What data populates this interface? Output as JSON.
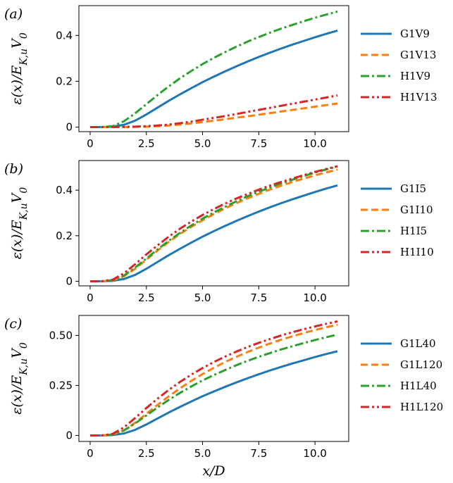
{
  "chart_data": [
    {
      "type": "line",
      "panel_label": "(a)",
      "ylabel": "ε(x)/E_{K,u}V_0",
      "xlabel": "",
      "xlim": [
        -0.5,
        11.5
      ],
      "ylim": [
        -0.02,
        0.53
      ],
      "xticks": [
        0,
        2.5,
        5,
        7.5,
        10
      ],
      "xtick_labels": [
        "0",
        "2.5",
        "5.0",
        "7.5",
        "10.0"
      ],
      "yticks": [
        0,
        0.2,
        0.4
      ],
      "ytick_labels": [
        "0",
        "0.2",
        "0.4"
      ],
      "legend_position": "right",
      "x": [
        0,
        0.5,
        1,
        1.5,
        2,
        2.5,
        3,
        3.5,
        4,
        4.5,
        5,
        5.5,
        6,
        6.5,
        7,
        7.5,
        8,
        8.5,
        9,
        9.5,
        10,
        10.5,
        11
      ],
      "series": [
        {
          "name": "G1V9",
          "color": "#1f77b4",
          "dash": "solid",
          "values": [
            0,
            0,
            0.002,
            0.01,
            0.028,
            0.055,
            0.085,
            0.115,
            0.143,
            0.17,
            0.196,
            0.22,
            0.243,
            0.265,
            0.286,
            0.306,
            0.325,
            0.343,
            0.36,
            0.376,
            0.392,
            0.407,
            0.421
          ]
        },
        {
          "name": "G1V13",
          "color": "#ff7f0e",
          "dash": "dashed",
          "values": [
            0,
            0,
            0,
            0,
            0.001,
            0.002,
            0.004,
            0.007,
            0.011,
            0.016,
            0.022,
            0.028,
            0.034,
            0.041,
            0.047,
            0.054,
            0.061,
            0.068,
            0.075,
            0.082,
            0.089,
            0.096,
            0.103
          ]
        },
        {
          "name": "H1V9",
          "color": "#2ca02c",
          "dash": "dashdot",
          "values": [
            0,
            0,
            0.004,
            0.025,
            0.06,
            0.1,
            0.14,
            0.178,
            0.213,
            0.245,
            0.275,
            0.302,
            0.327,
            0.351,
            0.373,
            0.393,
            0.412,
            0.43,
            0.446,
            0.462,
            0.477,
            0.491,
            0.504
          ]
        },
        {
          "name": "H1V13",
          "color": "#d62728",
          "dash": "dashdotdot",
          "values": [
            0,
            0,
            0,
            0.001,
            0.002,
            0.004,
            0.007,
            0.011,
            0.017,
            0.024,
            0.032,
            0.04,
            0.048,
            0.057,
            0.066,
            0.075,
            0.084,
            0.093,
            0.102,
            0.111,
            0.12,
            0.129,
            0.138
          ]
        }
      ]
    },
    {
      "type": "line",
      "panel_label": "(b)",
      "ylabel": "ε(x)/E_{K,u}V_0",
      "xlabel": "",
      "xlim": [
        -0.5,
        11.5
      ],
      "ylim": [
        -0.02,
        0.53
      ],
      "xticks": [
        0,
        2.5,
        5,
        7.5,
        10
      ],
      "xtick_labels": [
        "0",
        "2.5",
        "5.0",
        "7.5",
        "10.0"
      ],
      "yticks": [
        0,
        0.2,
        0.4
      ],
      "ytick_labels": [
        "0",
        "0.2",
        "0.4"
      ],
      "legend_position": "right",
      "x": [
        0,
        0.5,
        1,
        1.5,
        2,
        2.5,
        3,
        3.5,
        4,
        4.5,
        5,
        5.5,
        6,
        6.5,
        7,
        7.5,
        8,
        8.5,
        9,
        9.5,
        10,
        10.5,
        11
      ],
      "series": [
        {
          "name": "G1I5",
          "color": "#1f77b4",
          "dash": "solid",
          "values": [
            0,
            0,
            0.002,
            0.01,
            0.028,
            0.055,
            0.085,
            0.115,
            0.143,
            0.17,
            0.196,
            0.22,
            0.243,
            0.265,
            0.286,
            0.306,
            0.325,
            0.343,
            0.36,
            0.376,
            0.392,
            0.407,
            0.421
          ]
        },
        {
          "name": "G1I10",
          "color": "#ff7f0e",
          "dash": "dashed",
          "values": [
            0,
            0,
            0.004,
            0.022,
            0.055,
            0.095,
            0.135,
            0.173,
            0.208,
            0.239,
            0.268,
            0.295,
            0.32,
            0.343,
            0.364,
            0.384,
            0.403,
            0.42,
            0.436,
            0.451,
            0.465,
            0.478,
            0.49
          ]
        },
        {
          "name": "H1I5",
          "color": "#2ca02c",
          "dash": "dashdot",
          "values": [
            0,
            0,
            0.005,
            0.025,
            0.06,
            0.1,
            0.14,
            0.178,
            0.213,
            0.245,
            0.275,
            0.302,
            0.327,
            0.351,
            0.373,
            0.393,
            0.412,
            0.43,
            0.446,
            0.462,
            0.477,
            0.491,
            0.504
          ]
        },
        {
          "name": "H1I10",
          "color": "#d62728",
          "dash": "dashdotdot",
          "values": [
            0,
            0,
            0.007,
            0.035,
            0.075,
            0.118,
            0.158,
            0.196,
            0.231,
            0.262,
            0.291,
            0.317,
            0.341,
            0.363,
            0.383,
            0.402,
            0.42,
            0.436,
            0.451,
            0.466,
            0.48,
            0.493,
            0.505
          ]
        }
      ]
    },
    {
      "type": "line",
      "panel_label": "(c)",
      "ylabel": "ε(x)/E_{K,u}V_0",
      "xlabel": "x/D",
      "xlim": [
        -0.5,
        11.5
      ],
      "ylim": [
        -0.03,
        0.6
      ],
      "xticks": [
        0,
        2.5,
        5,
        7.5,
        10
      ],
      "xtick_labels": [
        "0",
        "2.5",
        "5.0",
        "7.5",
        "10.0"
      ],
      "yticks": [
        0,
        0.25,
        0.5
      ],
      "ytick_labels": [
        "0",
        "0.25",
        "0.50"
      ],
      "legend_position": "right",
      "x": [
        0,
        0.5,
        1,
        1.5,
        2,
        2.5,
        3,
        3.5,
        4,
        4.5,
        5,
        5.5,
        6,
        6.5,
        7,
        7.5,
        8,
        8.5,
        9,
        9.5,
        10,
        10.5,
        11
      ],
      "series": [
        {
          "name": "G1L40",
          "color": "#1f77b4",
          "dash": "solid",
          "values": [
            0,
            0,
            0.002,
            0.01,
            0.028,
            0.055,
            0.085,
            0.115,
            0.143,
            0.17,
            0.196,
            0.22,
            0.243,
            0.265,
            0.286,
            0.306,
            0.325,
            0.343,
            0.36,
            0.376,
            0.392,
            0.407,
            0.421
          ]
        },
        {
          "name": "G1L120",
          "color": "#ff7f0e",
          "dash": "dashed",
          "values": [
            0,
            0,
            0.005,
            0.025,
            0.063,
            0.108,
            0.153,
            0.196,
            0.236,
            0.273,
            0.307,
            0.338,
            0.367,
            0.393,
            0.417,
            0.439,
            0.46,
            0.479,
            0.496,
            0.512,
            0.527,
            0.541,
            0.553
          ]
        },
        {
          "name": "H1L40",
          "color": "#2ca02c",
          "dash": "dashdot",
          "values": [
            0,
            0,
            0.005,
            0.025,
            0.06,
            0.1,
            0.14,
            0.178,
            0.213,
            0.245,
            0.275,
            0.302,
            0.327,
            0.351,
            0.373,
            0.393,
            0.412,
            0.43,
            0.446,
            0.462,
            0.477,
            0.491,
            0.504
          ]
        },
        {
          "name": "H1L120",
          "color": "#d62728",
          "dash": "dashdotdot",
          "values": [
            0,
            0,
            0.008,
            0.04,
            0.087,
            0.137,
            0.184,
            0.228,
            0.268,
            0.304,
            0.337,
            0.367,
            0.394,
            0.419,
            0.442,
            0.463,
            0.482,
            0.5,
            0.516,
            0.531,
            0.545,
            0.558,
            0.57
          ]
        }
      ]
    }
  ]
}
